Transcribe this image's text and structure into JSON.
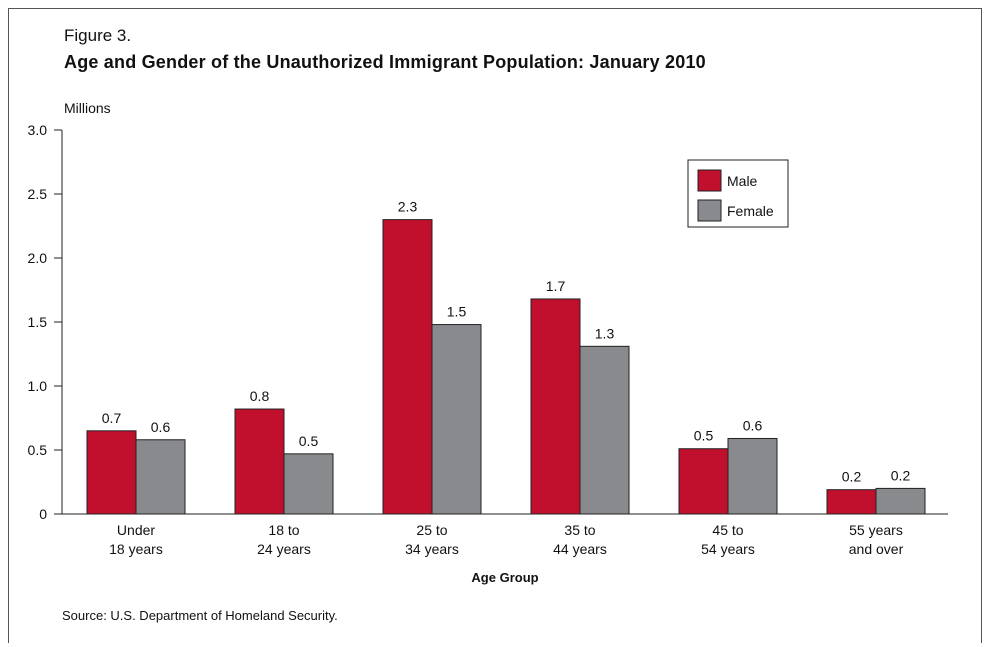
{
  "header": {
    "figure_label": "Figure 3.",
    "title": "Age and Gender of the Unauthorized Immigrant Population: January 2010",
    "unit": "Millions"
  },
  "footer": {
    "source": "Source: U.S. Department of Homeland Security."
  },
  "chart_data": {
    "type": "bar",
    "title": "Age and Gender of the Unauthorized Immigrant Population: January 2010",
    "xlabel": "Age Group",
    "ylabel": "Millions",
    "ylim": [
      0,
      3.0
    ],
    "yticks": [
      "0",
      "0.5",
      "1.0",
      "1.5",
      "2.0",
      "2.5",
      "3.0"
    ],
    "ytick_values": [
      0,
      0.5,
      1.0,
      1.5,
      2.0,
      2.5,
      3.0
    ],
    "categories": [
      [
        "Under",
        "18 years"
      ],
      [
        "18 to",
        "24 years"
      ],
      [
        "25 to",
        "34 years"
      ],
      [
        "35 to",
        "44 years"
      ],
      [
        "45 to",
        "54 years"
      ],
      [
        "55 years",
        "and over"
      ]
    ],
    "series": [
      {
        "name": "Male",
        "color": "#c0102e",
        "values": [
          0.65,
          0.82,
          2.3,
          1.68,
          0.51,
          0.19
        ],
        "labels": [
          "0.7",
          "0.8",
          "2.3",
          "1.7",
          "0.5",
          "0.2"
        ]
      },
      {
        "name": "Female",
        "color": "#888a8d",
        "values": [
          0.58,
          0.47,
          1.48,
          1.31,
          0.59,
          0.2
        ],
        "labels": [
          "0.6",
          "0.5",
          "1.5",
          "1.3",
          "0.6",
          "0.2"
        ]
      }
    ],
    "legend": "top-right",
    "grid": false
  }
}
